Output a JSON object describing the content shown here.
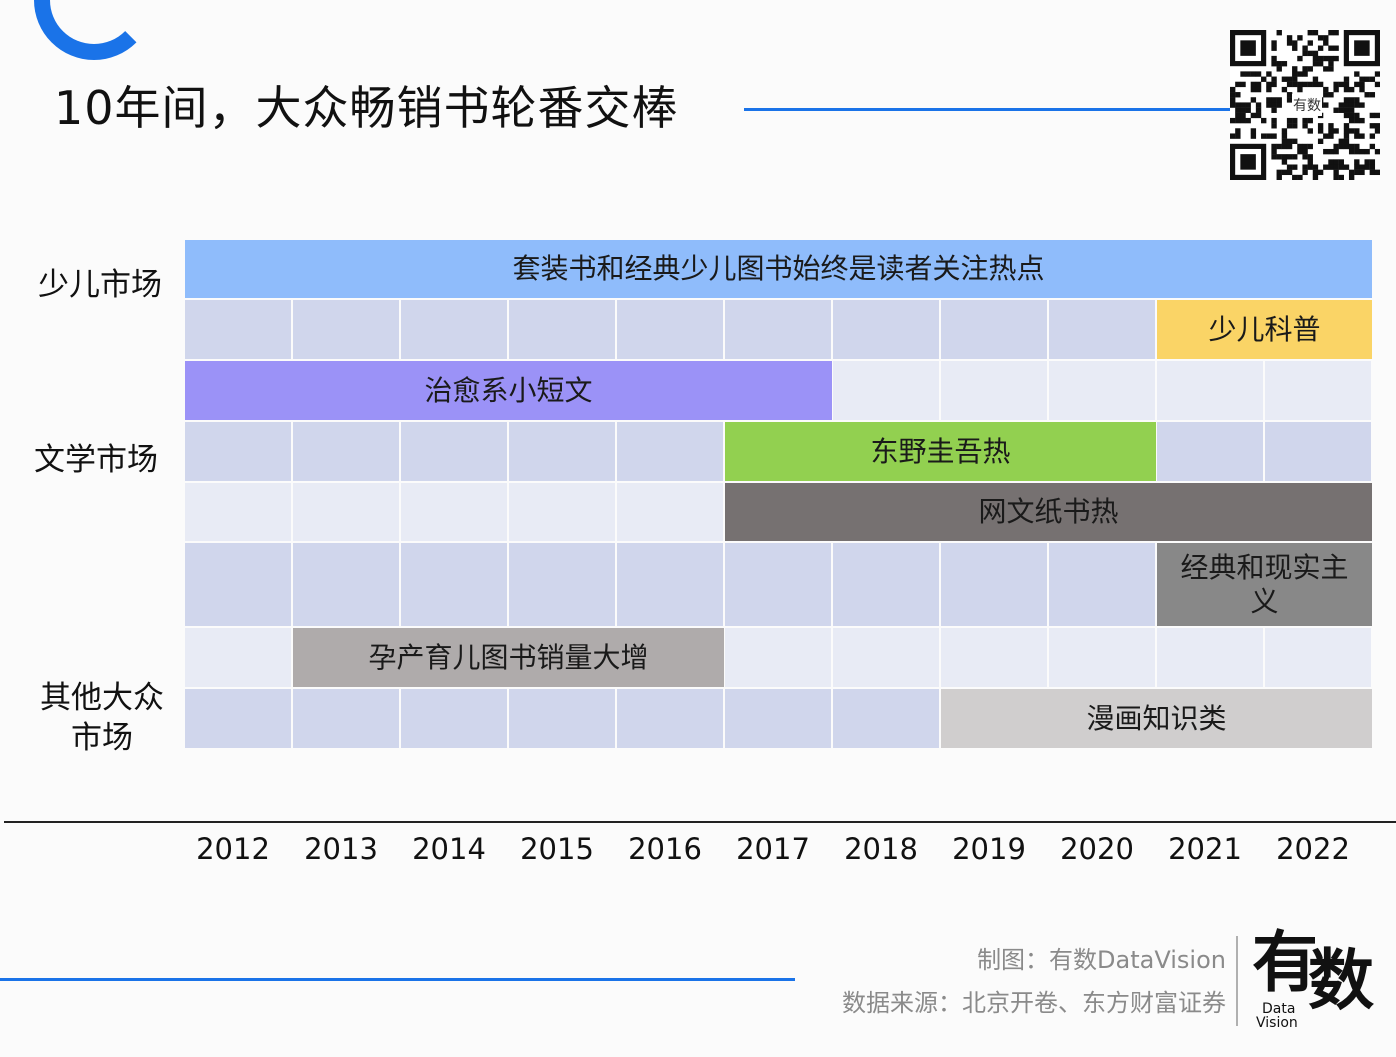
{
  "title": "10年间，大众畅销书轮番交棒",
  "colors": {
    "accent": "#1a73e8",
    "grid_dark": "#d0d6ec",
    "grid_light": "#e8ebf5"
  },
  "row_labels": {
    "children": "少儿市场",
    "literature": "文学市场",
    "other": "其他大众\n市场"
  },
  "chart_data": {
    "type": "table",
    "years": [
      "2012",
      "2013",
      "2014",
      "2015",
      "2016",
      "2017",
      "2018",
      "2019",
      "2020",
      "2021",
      "2022"
    ],
    "rows": [
      {
        "category": "少儿市场",
        "label": "套装书和经典少儿图书始终是读者关注热点",
        "start": "2012",
        "end": "2022",
        "color": "#8fbcfb"
      },
      {
        "category": "少儿市场",
        "label": "少儿科普",
        "start": "2021",
        "end": "2022",
        "color": "#fad466"
      },
      {
        "category": "文学市场",
        "label": "治愈系小短文",
        "start": "2012",
        "end": "2017",
        "color": "#9b92f7"
      },
      {
        "category": "文学市场",
        "label": "东野圭吾热",
        "start": "2017",
        "end": "2020",
        "color": "#92d050"
      },
      {
        "category": "文学市场",
        "label": "网文纸书热",
        "start": "2017",
        "end": "2022",
        "color": "#767171"
      },
      {
        "category": "文学市场",
        "label": "经典和现实主义",
        "start": "2021",
        "end": "2022",
        "color": "#888888"
      },
      {
        "category": "其他大众市场",
        "label": "孕产育儿图书销量大增",
        "start": "2013",
        "end": "2016",
        "color": "#afabab"
      },
      {
        "category": "其他大众市场",
        "label": "漫画知识类",
        "start": "2019",
        "end": "2022",
        "color": "#d0cece"
      }
    ]
  },
  "credits": {
    "maker": "制图：有数DataVision",
    "source": "数据来源：北京开卷、东方财富证券"
  },
  "logo": {
    "big_1": "有",
    "big_2": "数",
    "small_1": "Data",
    "small_2": "Vision"
  },
  "qr_center": "有数"
}
